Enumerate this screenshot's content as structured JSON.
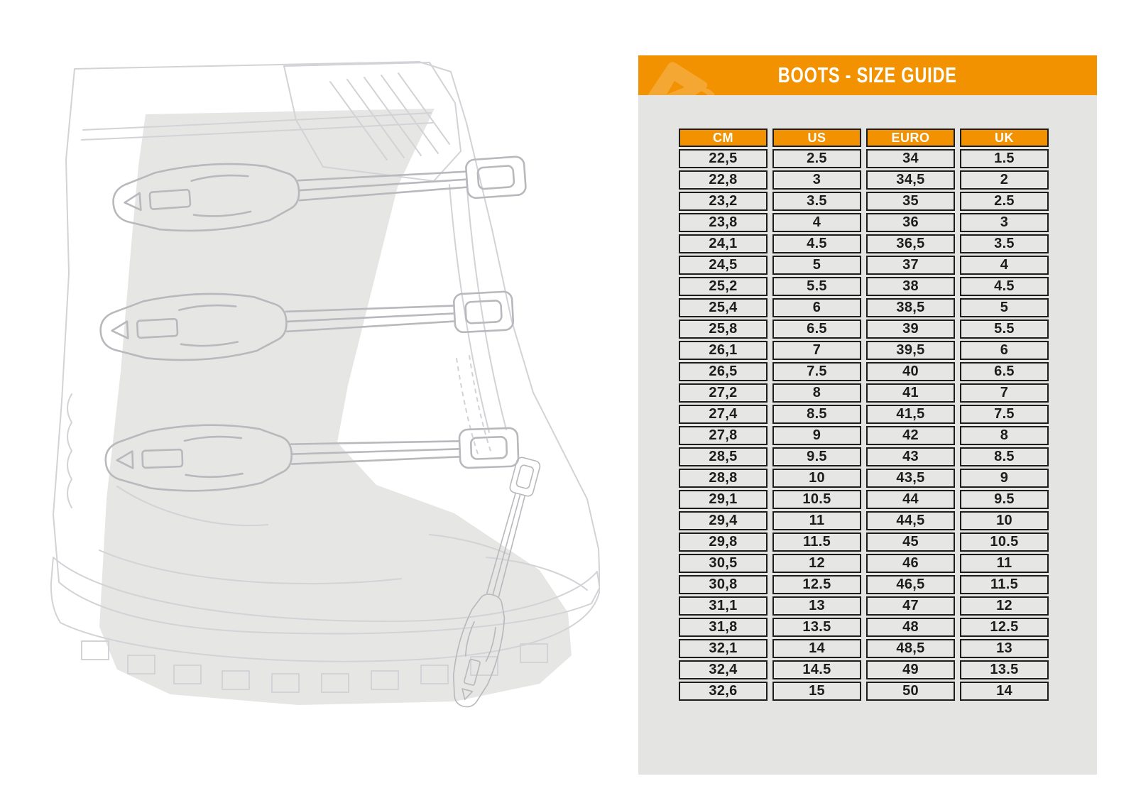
{
  "header": {
    "title": "BOOTS - SIZE GUIDE",
    "logo_icon": "acerbis-logo-icon"
  },
  "illustration": {
    "name": "motocross-boot-line-drawing"
  },
  "colors": {
    "accent_orange": "#F39200",
    "logo_orange": "#F5A733",
    "panel_gray": "#E4E4E2",
    "cell_gray": "#E6E6E4",
    "border_black": "#1D1D1B",
    "text_black": "#1D1D1B",
    "lineart_gray": "#D3D3D7",
    "buckle_gray": "#B8B8BD",
    "overlay_gray": "#E2E2E0"
  },
  "chart_data": {
    "type": "table",
    "title": "BOOTS - SIZE GUIDE",
    "columns": [
      "CM",
      "US",
      "EURO",
      "UK"
    ],
    "rows": [
      [
        "22,5",
        "2.5",
        "34",
        "1.5"
      ],
      [
        "22,8",
        "3",
        "34,5",
        "2"
      ],
      [
        "23,2",
        "3.5",
        "35",
        "2.5"
      ],
      [
        "23,8",
        "4",
        "36",
        "3"
      ],
      [
        "24,1",
        "4.5",
        "36,5",
        "3.5"
      ],
      [
        "24,5",
        "5",
        "37",
        "4"
      ],
      [
        "25,2",
        "5.5",
        "38",
        "4.5"
      ],
      [
        "25,4",
        "6",
        "38,5",
        "5"
      ],
      [
        "25,8",
        "6.5",
        "39",
        "5.5"
      ],
      [
        "26,1",
        "7",
        "39,5",
        "6"
      ],
      [
        "26,5",
        "7.5",
        "40",
        "6.5"
      ],
      [
        "27,2",
        "8",
        "41",
        "7"
      ],
      [
        "27,4",
        "8.5",
        "41,5",
        "7.5"
      ],
      [
        "27,8",
        "9",
        "42",
        "8"
      ],
      [
        "28,5",
        "9.5",
        "43",
        "8.5"
      ],
      [
        "28,8",
        "10",
        "43,5",
        "9"
      ],
      [
        "29,1",
        "10.5",
        "44",
        "9.5"
      ],
      [
        "29,4",
        "11",
        "44,5",
        "10"
      ],
      [
        "29,8",
        "11.5",
        "45",
        "10.5"
      ],
      [
        "30,5",
        "12",
        "46",
        "11"
      ],
      [
        "30,8",
        "12.5",
        "46,5",
        "11.5"
      ],
      [
        "31,1",
        "13",
        "47",
        "12"
      ],
      [
        "31,8",
        "13.5",
        "48",
        "12.5"
      ],
      [
        "32,1",
        "14",
        "48,5",
        "13"
      ],
      [
        "32,4",
        "14.5",
        "49",
        "13.5"
      ],
      [
        "32,6",
        "15",
        "50",
        "14"
      ]
    ]
  }
}
